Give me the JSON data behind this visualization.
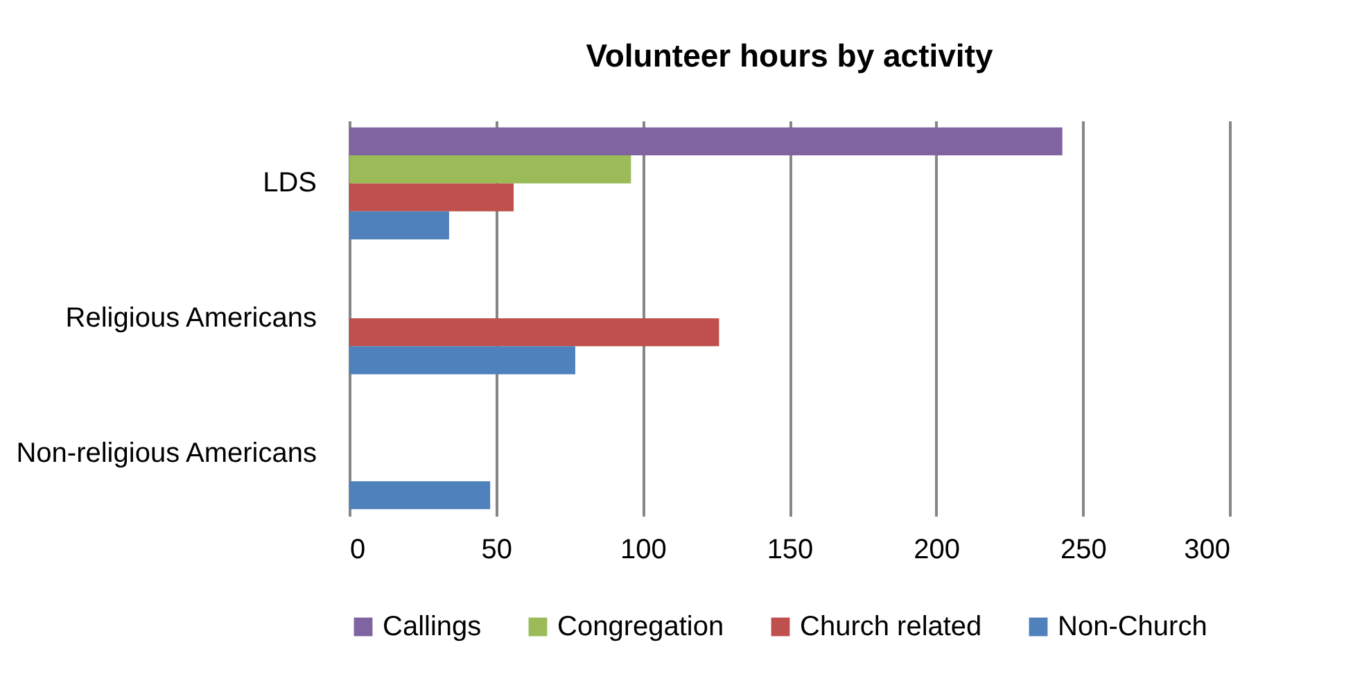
{
  "chart_data": {
    "type": "bar",
    "orientation": "horizontal",
    "title": "Volunteer hours by activity",
    "categories": [
      "LDS",
      "Religious Americans",
      "Non-religious Americans"
    ],
    "series": [
      {
        "name": "Callings",
        "color": "#8064a2",
        "values": [
          243,
          null,
          null
        ]
      },
      {
        "name": "Congregation",
        "color": "#9bbb59",
        "values": [
          96,
          null,
          null
        ]
      },
      {
        "name": "Church related",
        "color": "#c0504d",
        "values": [
          56,
          126,
          null
        ]
      },
      {
        "name": "Non-Church",
        "color": "#4f81bd",
        "values": [
          34,
          77,
          48
        ]
      }
    ],
    "xlim": [
      0,
      300
    ],
    "xticks": [
      0,
      50,
      100,
      150,
      200,
      250,
      300
    ],
    "grid": "x",
    "legend": "bottom"
  }
}
